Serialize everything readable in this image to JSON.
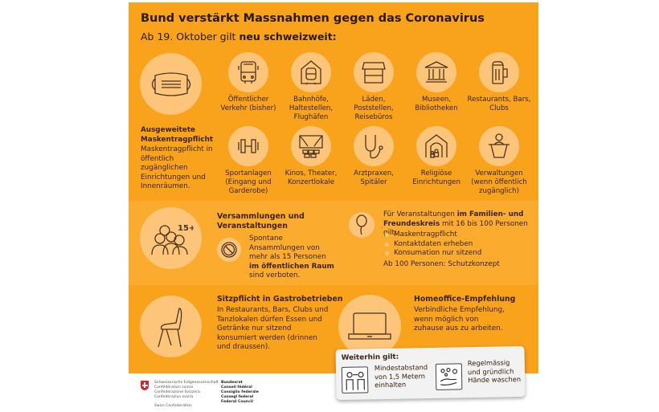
{
  "header": {
    "title": "Bund verstärkt Massnahmen gegen das Coronavirus",
    "subtitle_prefix": "Ab 19. Oktober gilt ",
    "subtitle_bold": "neu schweizweit:"
  },
  "mask": {
    "title": "Ausgeweitete Maskentragpflicht",
    "text": "Maskentragpflicht in öffentlich zugänglichen Einrichtungen und Innenräumen.",
    "places": [
      {
        "icon": "bus-icon",
        "label": "Öffentlicher Verkehr (bisher)"
      },
      {
        "icon": "train-station-icon",
        "label": "Bahnhöfe, Haltestellen, Flughäfen"
      },
      {
        "icon": "shop-icon",
        "label": "Läden, Poststellen, Reisebüros"
      },
      {
        "icon": "museum-icon",
        "label": "Museen, Bibliotheken"
      },
      {
        "icon": "beer-mug-icon",
        "label": "Restaurants, Bars, Clubs"
      },
      {
        "icon": "dumbbell-icon",
        "label": "Sportanlagen (Eingang und Garderobe)"
      },
      {
        "icon": "theater-icon",
        "label": "Kinos, Theater, Konzertlokale"
      },
      {
        "icon": "stethoscope-icon",
        "label": "Arztpraxen, Spitäler"
      },
      {
        "icon": "religious-building-icon",
        "label": "Religiöse Einrichtungen"
      },
      {
        "icon": "counter-desk-icon",
        "label": "Verwaltungen (wenn öffentlich zugänglich)"
      }
    ]
  },
  "gatherings": {
    "title": "Versammlungen und Veranstaltungen",
    "badge": "15+",
    "text_1": "Spontane Ansammlungen von mehr als 15 Personen ",
    "text_bold": "im öffentlichen Raum",
    "text_2": " sind verboten.",
    "private_intro_1": "Für Veranstaltungen ",
    "private_intro_bold": "im Familien- und Freundeskreis",
    "private_intro_2": " mit 16 bis 100 Personen gilt:",
    "private_rules": [
      "Maskentragpflicht",
      "Kontaktdaten erheben",
      "Konsumation nur sitzend"
    ],
    "large": "Ab 100 Personen: Schutzkonzept"
  },
  "seating": {
    "title": "Sitzpflicht in Gastrobetrieben",
    "text": "In Restaurants, Bars, Clubs und Tanzlokalen dürfen Essen und Getränke nur sitzend konsumiert werden (drinnen und draussen)."
  },
  "homeoffice": {
    "title": "Homeoffice-Empfehlung",
    "text": "Verbindliche Empfehlung, wenn möglich von zuhause aus zu arbeiten."
  },
  "card": {
    "title": "Weiterhin gilt:",
    "distance": "Mindestabstand von 1,5 Metern einhalten",
    "hands": "Regelmässig und gründlich Hände waschen"
  },
  "footer": {
    "confed": [
      "Schweizerische Eidgenossenschaft",
      "Confédération suisse",
      "Confederazione Svizzera",
      "Confederaziun svizra"
    ],
    "swiss": "Swiss Confederation",
    "council": [
      "Bundesrat",
      "Conseil fédéral",
      "Consiglio federale",
      "Cussegl federal",
      "Federal Council"
    ]
  },
  "colors": {
    "orange": "#f9a21c",
    "circle": "#fcc57a",
    "band": "#fbab2e"
  }
}
